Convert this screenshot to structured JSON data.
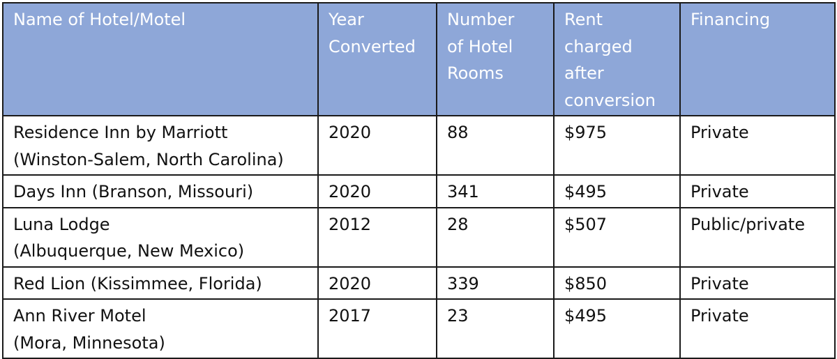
{
  "table": {
    "headers": [
      {
        "lines": [
          "Name of Hotel/Motel"
        ]
      },
      {
        "lines": [
          "Year",
          "Converted"
        ]
      },
      {
        "lines": [
          "Number",
          "of Hotel",
          "Rooms"
        ]
      },
      {
        "lines": [
          "Rent",
          "charged",
          "after",
          "conversion"
        ]
      },
      {
        "lines": [
          "Financing"
        ]
      }
    ],
    "rows": [
      {
        "name": [
          "Residence Inn by Marriott",
          "(Winston-Salem, North Carolina)"
        ],
        "year": "2020",
        "rooms": "88",
        "rent": "$975",
        "financing": "Private"
      },
      {
        "name": [
          "Days Inn (Branson, Missouri)"
        ],
        "year": "2020",
        "rooms": "341",
        "rent": "$495",
        "financing": "Private"
      },
      {
        "name": [
          "Luna Lodge",
          "(Albuquerque, New Mexico)"
        ],
        "year": "2012",
        "rooms": "28",
        "rent": "$507",
        "financing": "Public/private"
      },
      {
        "name": [
          "Red Lion (Kissimmee, Florida)"
        ],
        "year": "2020",
        "rooms": "339",
        "rent": "$850",
        "financing": "Private"
      },
      {
        "name": [
          "Ann River Motel",
          "(Mora, Minnesota)"
        ],
        "year": "2017",
        "rooms": "23",
        "rent": "$495",
        "financing": "Private"
      }
    ]
  }
}
